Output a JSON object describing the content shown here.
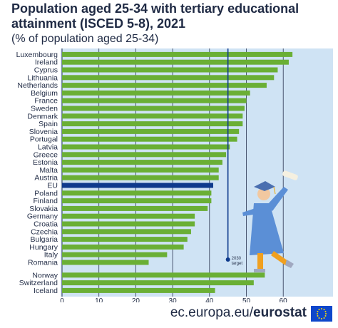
{
  "title": "Population aged 25-34 with tertiary educational attainment (ISCED 5-8), 2021",
  "title_line1": "Population aged 25-34 with tertiary educational",
  "title_line2": "attainment (ISCED 5-8), 2021",
  "subtitle": "(% of population aged 25-34)",
  "footer": {
    "url_prefix": "ec.europa.eu/",
    "url_brand": "eurostat"
  },
  "colors": {
    "background": "#cfe3f4",
    "bar": "#6aaf35",
    "eu_bar": "#0e3a8c",
    "target_line": "#0e3a8c",
    "grid": "#2a3550"
  },
  "chart_data": {
    "type": "bar",
    "orientation": "horizontal",
    "title": "Population aged 25-34 with tertiary educational attainment (ISCED 5-8), 2021",
    "subtitle": "(% of population aged 25-34)",
    "xlim": [
      0,
      65
    ],
    "x_ticks": [
      0,
      10,
      20,
      30,
      40,
      50,
      60
    ],
    "grid": true,
    "target": {
      "value": 45,
      "label_line1": "2030",
      "label_line2": "target"
    },
    "categories": [
      "Luxembourg",
      "Ireland",
      "Cyprus",
      "Lithuania",
      "Netherlands",
      "Belgium",
      "France",
      "Sweden",
      "Denmark",
      "Spain",
      "Slovenia",
      "Portugal",
      "Latvia",
      "Greece",
      "Estonia",
      "Malta",
      "Austria",
      "EU",
      "Poland",
      "Finland",
      "Slovakia",
      "Germany",
      "Croatia",
      "Czechia",
      "Bulgaria",
      "Hungary",
      "Italy",
      "Romania",
      "Norway",
      "Switzerland",
      "Iceland"
    ],
    "values": [
      62.5,
      61.5,
      58.5,
      57.5,
      55.5,
      51,
      50,
      49.5,
      49,
      49,
      48,
      47.5,
      45.5,
      44.5,
      43.5,
      42.5,
      42.5,
      41,
      40.5,
      40.5,
      39.5,
      36,
      36,
      35,
      34,
      33,
      28.5,
      23.5,
      55,
      52,
      41.5
    ],
    "highlight": "EU"
  }
}
